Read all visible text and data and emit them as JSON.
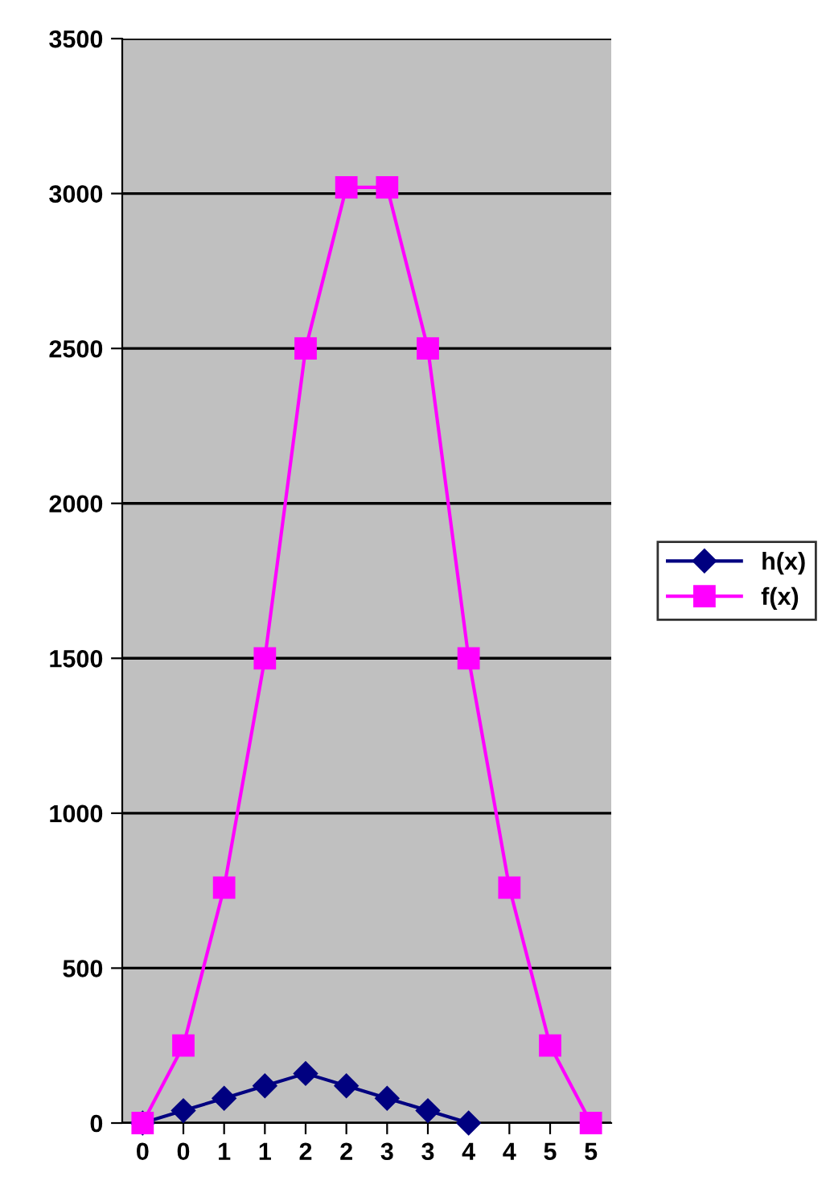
{
  "chart_data": {
    "type": "line",
    "categories": [
      "0",
      "0",
      "1",
      "1",
      "2",
      "2",
      "3",
      "3",
      "4",
      "4",
      "5",
      "5"
    ],
    "series": [
      {
        "name": "h(x)",
        "color": "#000080",
        "marker": "diamond",
        "values": [
          0,
          40,
          80,
          120,
          160,
          120,
          80,
          40,
          0,
          null,
          null,
          null
        ]
      },
      {
        "name": "f(x)",
        "color": "#ff00ff",
        "marker": "square",
        "values": [
          0,
          250,
          760,
          1500,
          2500,
          3020,
          3020,
          2500,
          1500,
          760,
          250,
          0
        ]
      }
    ],
    "ylim": [
      0,
      3500
    ],
    "yticks": [
      0,
      500,
      1000,
      1500,
      2000,
      2500,
      3000,
      3500
    ],
    "grid": "y",
    "legend": "right",
    "line_style": "solid"
  }
}
